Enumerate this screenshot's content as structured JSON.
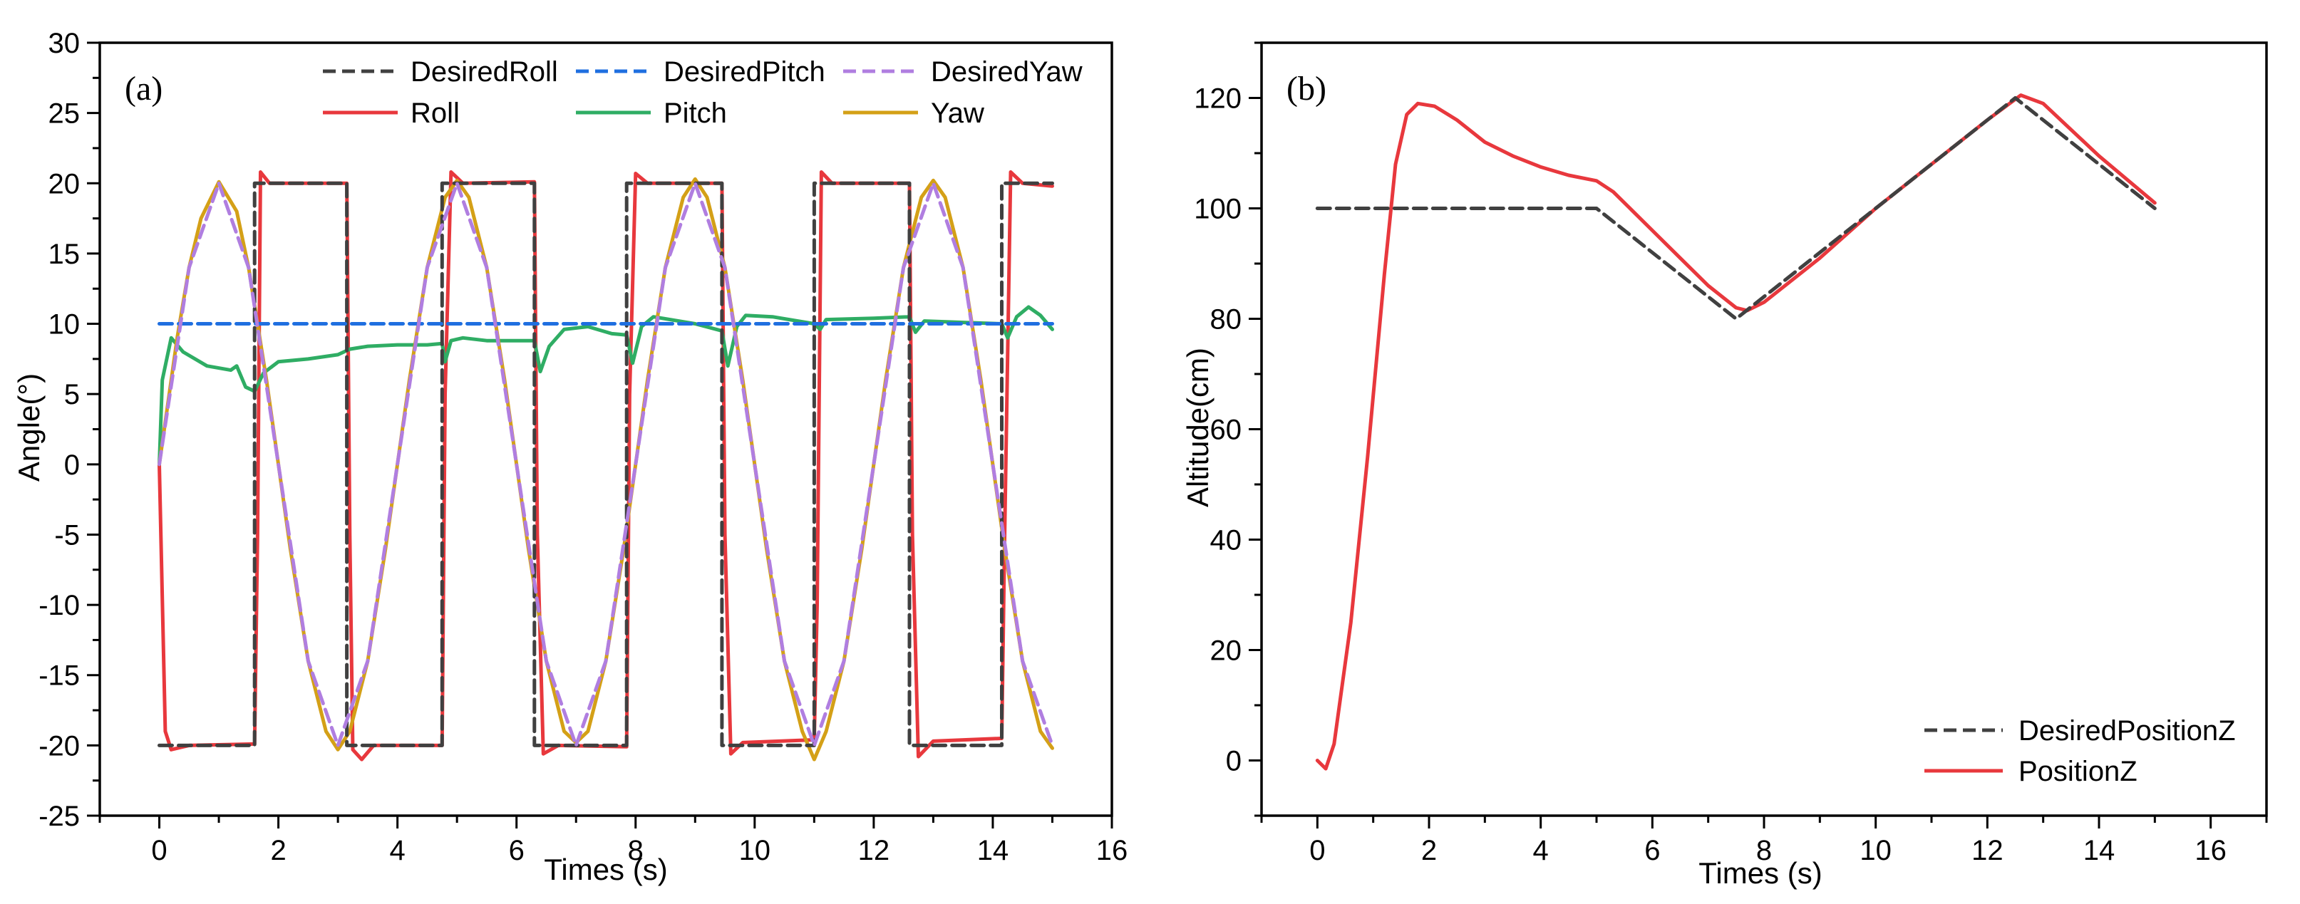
{
  "chart_data": [
    {
      "type": "line",
      "panel_label": "(a)",
      "title": "",
      "xlabel": "Times (s)",
      "ylabel": "Angle(°)",
      "xlim": [
        -1,
        16
      ],
      "ylim": [
        -25,
        30
      ],
      "xticks": [
        0,
        2,
        4,
        6,
        8,
        10,
        12,
        14,
        16
      ],
      "yticks": [
        -25,
        -20,
        -15,
        -10,
        -5,
        0,
        5,
        10,
        15,
        20,
        25,
        30
      ],
      "grid": false,
      "legend_position": "top",
      "series": [
        {
          "name": "DesiredRoll",
          "color": "#404040",
          "style": "dashed",
          "data": [
            [
              0,
              -20
            ],
            [
              1.6,
              -20
            ],
            [
              1.6,
              20
            ],
            [
              3.15,
              20
            ],
            [
              3.15,
              -20
            ],
            [
              4.75,
              -20
            ],
            [
              4.75,
              20
            ],
            [
              6.3,
              20
            ],
            [
              6.3,
              -20
            ],
            [
              7.85,
              -20
            ],
            [
              7.85,
              20
            ],
            [
              9.45,
              20
            ],
            [
              9.45,
              -20
            ],
            [
              11.0,
              -20
            ],
            [
              11.0,
              20
            ],
            [
              12.6,
              20
            ],
            [
              12.6,
              -20
            ],
            [
              14.15,
              -20
            ],
            [
              14.15,
              20
            ],
            [
              15.0,
              20
            ]
          ]
        },
        {
          "name": "DesiredPitch",
          "color": "#1f6fe0",
          "style": "dashed",
          "data": [
            [
              0,
              10
            ],
            [
              15,
              10
            ]
          ]
        },
        {
          "name": "DesiredYaw",
          "color": "#b07ee0",
          "style": "dashed",
          "data": [
            [
              0,
              0
            ],
            [
              0.5,
              14
            ],
            [
              1.0,
              20
            ],
            [
              1.5,
              14
            ],
            [
              2.0,
              0
            ],
            [
              2.5,
              -14
            ],
            [
              3.0,
              -20
            ],
            [
              3.5,
              -14
            ],
            [
              4.0,
              0
            ],
            [
              4.5,
              14
            ],
            [
              5.0,
              20
            ],
            [
              5.5,
              14
            ],
            [
              6.0,
              0
            ],
            [
              6.5,
              -14
            ],
            [
              7.0,
              -20
            ],
            [
              7.5,
              -14
            ],
            [
              8.0,
              0
            ],
            [
              8.5,
              14
            ],
            [
              9.0,
              20
            ],
            [
              9.5,
              14
            ],
            [
              10.0,
              0
            ],
            [
              10.5,
              -14
            ],
            [
              11.0,
              -20
            ],
            [
              11.5,
              -14
            ],
            [
              12.0,
              0
            ],
            [
              12.5,
              14
            ],
            [
              13.0,
              20
            ],
            [
              13.5,
              14
            ],
            [
              14.0,
              0
            ],
            [
              14.5,
              -14
            ],
            [
              15.0,
              -20
            ]
          ]
        },
        {
          "name": "Roll",
          "color": "#e8383d",
          "style": "solid",
          "data": [
            [
              0,
              0
            ],
            [
              0.1,
              -19
            ],
            [
              0.2,
              -20.3
            ],
            [
              0.5,
              -20
            ],
            [
              1.6,
              -19.9
            ],
            [
              1.65,
              -5
            ],
            [
              1.7,
              20.8
            ],
            [
              1.85,
              20
            ],
            [
              3.15,
              20
            ],
            [
              3.2,
              -5
            ],
            [
              3.25,
              -20.3
            ],
            [
              3.4,
              -21
            ],
            [
              3.6,
              -20
            ],
            [
              4.75,
              -20
            ],
            [
              4.8,
              5
            ],
            [
              4.9,
              20.8
            ],
            [
              5.1,
              20
            ],
            [
              6.3,
              20.1
            ],
            [
              6.35,
              -5
            ],
            [
              6.45,
              -20.6
            ],
            [
              6.7,
              -20
            ],
            [
              7.85,
              -20.1
            ],
            [
              7.9,
              5
            ],
            [
              8.0,
              20.7
            ],
            [
              8.2,
              20
            ],
            [
              9.45,
              20
            ],
            [
              9.5,
              -5
            ],
            [
              9.6,
              -20.6
            ],
            [
              9.8,
              -19.8
            ],
            [
              11.0,
              -19.6
            ],
            [
              11.05,
              -10
            ],
            [
              11.12,
              20.8
            ],
            [
              11.3,
              20
            ],
            [
              12.6,
              20
            ],
            [
              12.65,
              -5
            ],
            [
              12.75,
              -20.8
            ],
            [
              13.0,
              -19.7
            ],
            [
              14.15,
              -19.5
            ],
            [
              14.2,
              -5
            ],
            [
              14.3,
              20.8
            ],
            [
              14.5,
              20
            ],
            [
              15.0,
              19.8
            ]
          ]
        },
        {
          "name": "Pitch",
          "color": "#2fad64",
          "style": "solid",
          "data": [
            [
              0,
              0
            ],
            [
              0.05,
              6
            ],
            [
              0.2,
              9
            ],
            [
              0.4,
              8
            ],
            [
              0.8,
              7
            ],
            [
              1.2,
              6.7
            ],
            [
              1.3,
              7
            ],
            [
              1.45,
              5.5
            ],
            [
              1.6,
              5.2
            ],
            [
              1.75,
              6.5
            ],
            [
              2.0,
              7.3
            ],
            [
              2.5,
              7.5
            ],
            [
              3.0,
              7.8
            ],
            [
              3.2,
              8.2
            ],
            [
              3.5,
              8.4
            ],
            [
              4.0,
              8.5
            ],
            [
              4.5,
              8.5
            ],
            [
              4.75,
              8.6
            ],
            [
              4.8,
              7.3
            ],
            [
              4.9,
              8.8
            ],
            [
              5.1,
              9
            ],
            [
              5.5,
              8.8
            ],
            [
              6.0,
              8.8
            ],
            [
              6.3,
              8.8
            ],
            [
              6.4,
              6.6
            ],
            [
              6.55,
              8.4
            ],
            [
              6.8,
              9.6
            ],
            [
              7.2,
              9.8
            ],
            [
              7.6,
              9.3
            ],
            [
              7.85,
              9.2
            ],
            [
              7.95,
              7.2
            ],
            [
              8.1,
              9.8
            ],
            [
              8.3,
              10.5
            ],
            [
              9.0,
              10
            ],
            [
              9.45,
              9.5
            ],
            [
              9.55,
              7.0
            ],
            [
              9.7,
              9.8
            ],
            [
              9.85,
              10.6
            ],
            [
              10.3,
              10.5
            ],
            [
              11.0,
              10
            ],
            [
              11.1,
              9.6
            ],
            [
              11.2,
              10.3
            ],
            [
              12.0,
              10.4
            ],
            [
              12.6,
              10.5
            ],
            [
              12.7,
              9.4
            ],
            [
              12.85,
              10.2
            ],
            [
              13.5,
              10.1
            ],
            [
              14.15,
              10
            ],
            [
              14.25,
              9
            ],
            [
              14.4,
              10.5
            ],
            [
              14.6,
              11.2
            ],
            [
              14.8,
              10.6
            ],
            [
              15.0,
              9.6
            ]
          ]
        },
        {
          "name": "Yaw",
          "color": "#d4a017",
          "style": "solid",
          "data": [
            [
              0,
              0
            ],
            [
              0.3,
              9
            ],
            [
              0.5,
              14
            ],
            [
              0.7,
              17.5
            ],
            [
              1.0,
              20.1
            ],
            [
              1.3,
              18
            ],
            [
              1.5,
              14
            ],
            [
              1.8,
              6
            ],
            [
              2.0,
              0
            ],
            [
              2.2,
              -6
            ],
            [
              2.5,
              -14
            ],
            [
              2.8,
              -19
            ],
            [
              3.0,
              -20.3
            ],
            [
              3.2,
              -19
            ],
            [
              3.5,
              -14
            ],
            [
              3.8,
              -6
            ],
            [
              4.0,
              0
            ],
            [
              4.2,
              6
            ],
            [
              4.5,
              14
            ],
            [
              4.8,
              19
            ],
            [
              5.0,
              20.2
            ],
            [
              5.2,
              19
            ],
            [
              5.5,
              14
            ],
            [
              5.8,
              6
            ],
            [
              6.0,
              0
            ],
            [
              6.2,
              -6
            ],
            [
              6.5,
              -14
            ],
            [
              6.8,
              -19
            ],
            [
              7.0,
              -19.8
            ],
            [
              7.2,
              -19
            ],
            [
              7.5,
              -14
            ],
            [
              7.8,
              -6
            ],
            [
              8.0,
              0
            ],
            [
              8.2,
              6
            ],
            [
              8.5,
              14
            ],
            [
              8.8,
              19
            ],
            [
              9.0,
              20.3
            ],
            [
              9.2,
              19
            ],
            [
              9.5,
              14
            ],
            [
              9.8,
              6
            ],
            [
              10.0,
              0
            ],
            [
              10.2,
              -6
            ],
            [
              10.5,
              -14
            ],
            [
              10.8,
              -19
            ],
            [
              11.0,
              -21
            ],
            [
              11.2,
              -19
            ],
            [
              11.5,
              -14
            ],
            [
              11.8,
              -6
            ],
            [
              12.0,
              0
            ],
            [
              12.2,
              6
            ],
            [
              12.5,
              14
            ],
            [
              12.8,
              19
            ],
            [
              13.0,
              20.2
            ],
            [
              13.2,
              19
            ],
            [
              13.5,
              14
            ],
            [
              13.8,
              6
            ],
            [
              14.0,
              0
            ],
            [
              14.2,
              -6
            ],
            [
              14.5,
              -14
            ],
            [
              14.8,
              -19
            ],
            [
              15.0,
              -20.2
            ]
          ]
        }
      ]
    },
    {
      "type": "line",
      "panel_label": "(b)",
      "title": "",
      "xlabel": "Times (s)",
      "ylabel": "Altitude(cm)",
      "xlim": [
        -1,
        17
      ],
      "ylim": [
        -10,
        130
      ],
      "xticks": [
        0,
        2,
        4,
        6,
        8,
        10,
        12,
        14,
        16
      ],
      "yticks": [
        0,
        20,
        40,
        60,
        80,
        100,
        120
      ],
      "grid": false,
      "legend_position": "bottom-right",
      "series": [
        {
          "name": "DesiredPositionZ",
          "color": "#404040",
          "style": "dashed",
          "data": [
            [
              0,
              100
            ],
            [
              5,
              100
            ],
            [
              7.5,
              80
            ],
            [
              12.5,
              120
            ],
            [
              15,
              100
            ]
          ]
        },
        {
          "name": "PositionZ",
          "color": "#e8383d",
          "style": "solid",
          "data": [
            [
              0,
              0
            ],
            [
              0.15,
              -1.5
            ],
            [
              0.3,
              3
            ],
            [
              0.6,
              25
            ],
            [
              0.9,
              55
            ],
            [
              1.2,
              88
            ],
            [
              1.4,
              108
            ],
            [
              1.6,
              117
            ],
            [
              1.8,
              119
            ],
            [
              2.1,
              118.5
            ],
            [
              2.5,
              116
            ],
            [
              3.0,
              112
            ],
            [
              3.5,
              109.5
            ],
            [
              4.0,
              107.5
            ],
            [
              4.5,
              106
            ],
            [
              5.0,
              105
            ],
            [
              5.3,
              103
            ],
            [
              6.0,
              96
            ],
            [
              6.5,
              91
            ],
            [
              7.0,
              86
            ],
            [
              7.5,
              82
            ],
            [
              7.7,
              81.5
            ],
            [
              8.0,
              83
            ],
            [
              9.0,
              91
            ],
            [
              10.0,
              100
            ],
            [
              11.0,
              108
            ],
            [
              12.0,
              116
            ],
            [
              12.6,
              120.5
            ],
            [
              13.0,
              119
            ],
            [
              14.0,
              109.5
            ],
            [
              15.0,
              101
            ]
          ]
        }
      ]
    }
  ]
}
